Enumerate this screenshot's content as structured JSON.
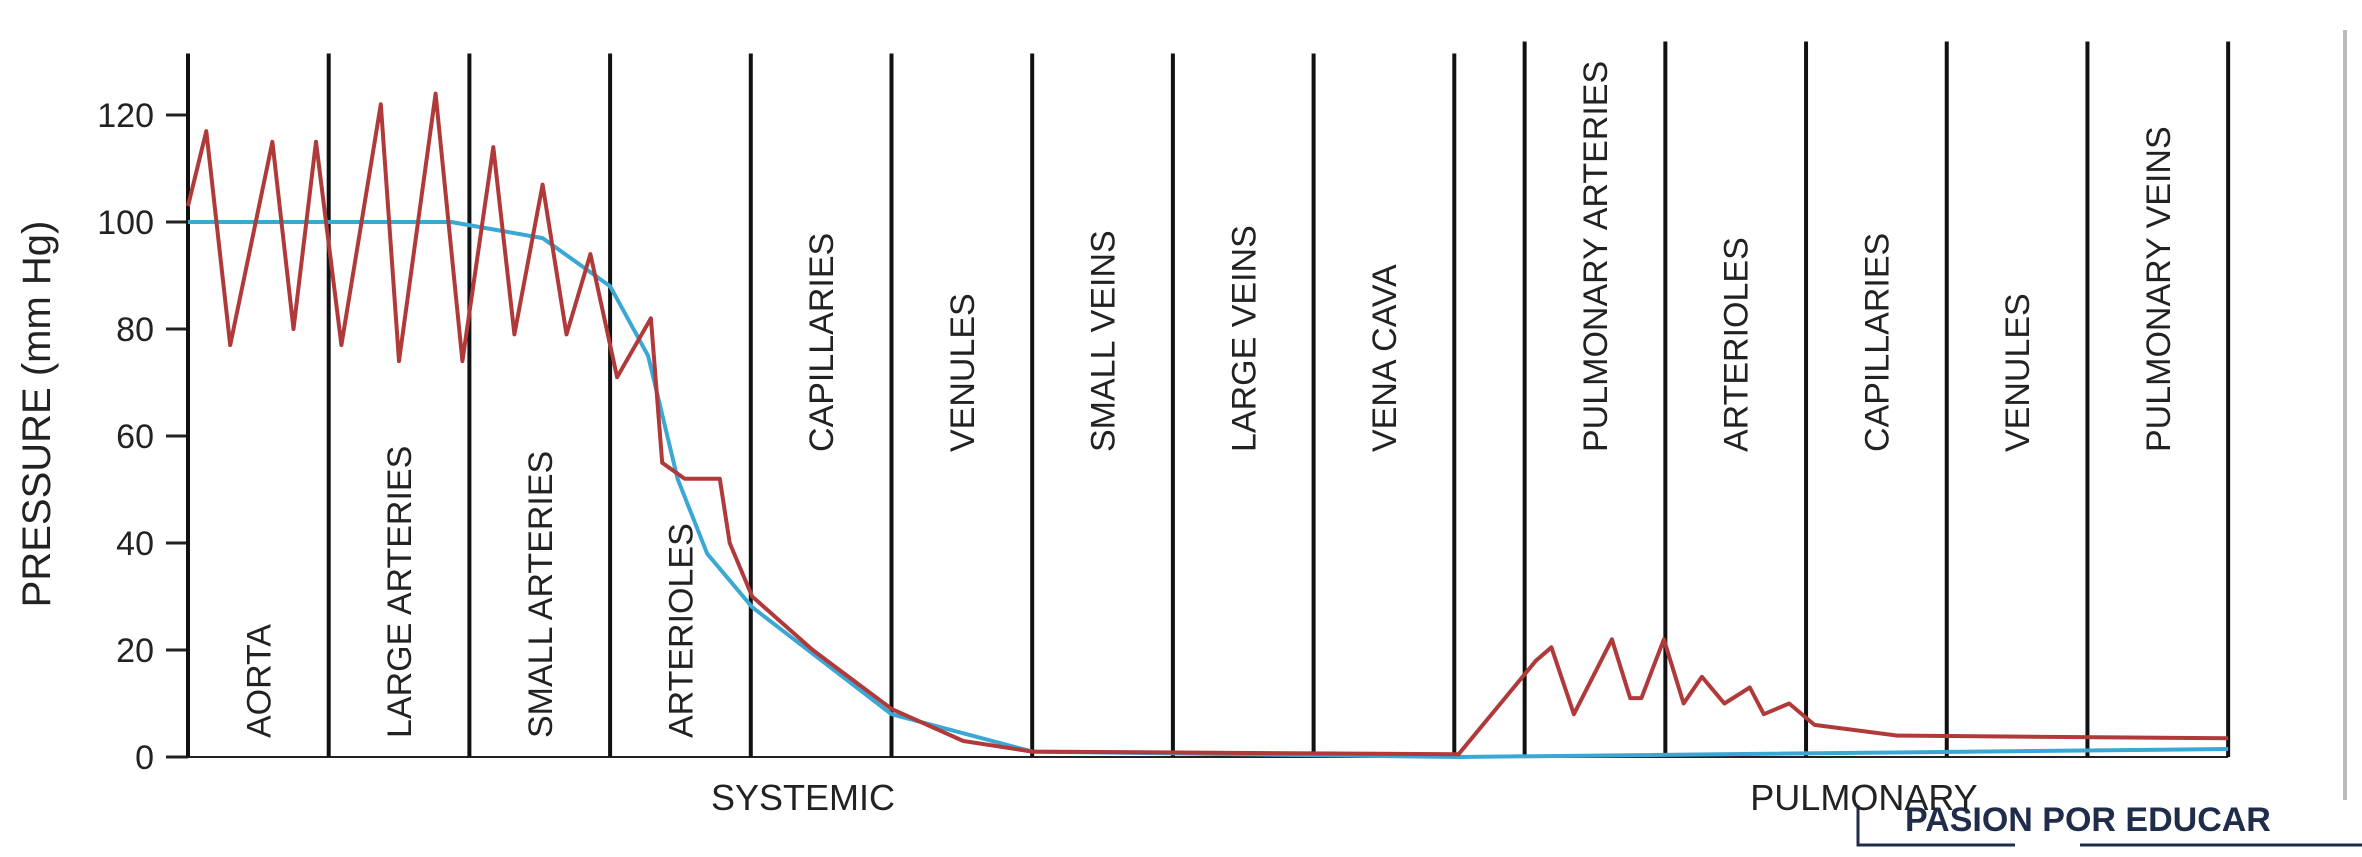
{
  "chart_data": {
    "type": "line",
    "y_label": "PRESSURE (mm Hg)",
    "ylim": [
      0,
      130
    ],
    "yticks": [
      0,
      20,
      40,
      60,
      80,
      100,
      120
    ],
    "xlim": [
      0,
      14.5
    ],
    "categories": [
      "AORTA",
      "LARGE ARTERIES",
      "SMALL ARTERIES",
      "ARTERIOLES",
      "CAPILLARIES",
      "VENULES",
      "SMALL VEINS",
      "LARGE VEINS",
      "VENA CAVA",
      "PULMONARY ARTERIES",
      "ARTERIOLES",
      "CAPILLARIES",
      "VENULES",
      "PULMONARY VEINS"
    ],
    "group_labels": [
      "SYSTEMIC",
      "PULMONARY"
    ],
    "series": [
      {
        "color": "#b03a3a",
        "x": [
          0,
          0.13,
          0.3,
          0.6,
          0.75,
          0.91,
          1.09,
          1.37,
          1.5,
          1.76,
          1.95,
          2.17,
          2.32,
          2.52,
          2.69,
          2.86,
          3.05,
          3.29,
          3.37,
          3.53,
          3.78,
          3.85,
          4.01,
          4.44,
          5.0,
          5.51,
          6.0,
          9.03,
          9.58,
          9.69,
          9.85,
          10.12,
          10.25,
          10.33,
          10.49,
          10.63,
          10.76,
          10.92,
          11.1,
          11.2,
          11.38,
          11.56,
          12.15,
          14.5
        ],
        "values": [
          103,
          117,
          77,
          115,
          80,
          115,
          77,
          122,
          74,
          124,
          74,
          114,
          79,
          107,
          79,
          94,
          71,
          82,
          55,
          52,
          52,
          40,
          30,
          20,
          9,
          3,
          1,
          0.5,
          18,
          20.5,
          8,
          22,
          11,
          11,
          22,
          10,
          15,
          10,
          13,
          8,
          10,
          6,
          4,
          3.5
        ]
      },
      {
        "color": "#3aa7d4",
        "x": [
          0,
          1.87,
          2.52,
          3.0,
          3.27,
          3.48,
          3.69,
          4.01,
          5.0,
          6.0,
          9.03,
          14.5
        ],
        "values": [
          100,
          100,
          97,
          88,
          75,
          52,
          38,
          28,
          8,
          1,
          0,
          1.5
        ]
      }
    ]
  },
  "footer": "PASION POR EDUCAR"
}
